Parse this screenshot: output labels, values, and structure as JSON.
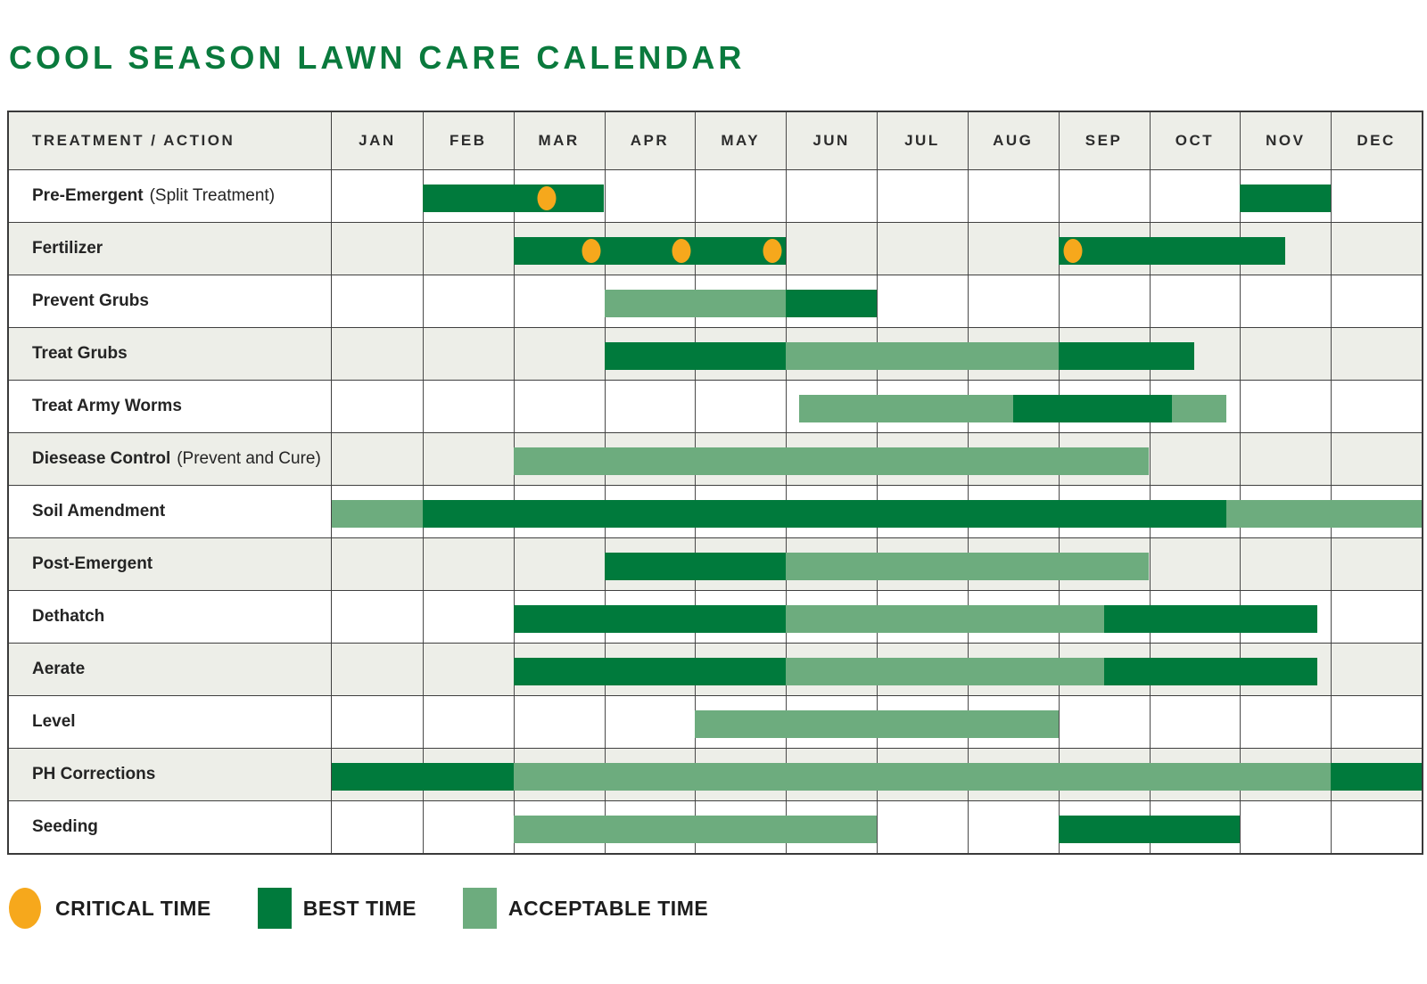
{
  "title": "COOL SEASON LAWN CARE CALENDAR",
  "colors": {
    "title_green": "#0a7a3d",
    "best_time": "#007a3c",
    "acceptable_time": "#6dac7e",
    "critical_time": "#f6a81c",
    "row_alt_bg": "#edeee8",
    "grid_line": "#4a4a4a",
    "row_line": "#3f3f3f",
    "table_border": "#3a3a3a"
  },
  "table": {
    "header": {
      "treatment_label": "TREATMENT / ACTION",
      "months": [
        "JAN",
        "FEB",
        "MAR",
        "APR",
        "MAY",
        "JUN",
        "JUL",
        "AUG",
        "SEP",
        "OCT",
        "NOV",
        "DEC"
      ]
    }
  },
  "chart_data": {
    "type": "table",
    "subtype": "gantt-calendar",
    "title": "COOL SEASON LAWN CARE CALENDAR",
    "x_unit": "month index: 0 = start of Jan, 12 = end of Dec",
    "x_domain_labels": [
      "JAN",
      "FEB",
      "MAR",
      "APR",
      "MAY",
      "JUN",
      "JUL",
      "AUG",
      "SEP",
      "OCT",
      "NOV",
      "DEC"
    ],
    "segment_types": {
      "best": "BEST TIME",
      "acceptable": "ACCEPTABLE TIME",
      "critical_dot": "CRITICAL TIME"
    },
    "rows": [
      {
        "label": "Pre-Emergent",
        "note": "(Split Treatment)",
        "segments": [
          {
            "type": "best",
            "start": 1,
            "end": 3
          },
          {
            "type": "best",
            "start": 10,
            "end": 11
          }
        ],
        "critical_dots": [
          2.37
        ]
      },
      {
        "label": "Fertilizer",
        "note": "",
        "segments": [
          {
            "type": "best",
            "start": 2,
            "end": 5
          },
          {
            "type": "best",
            "start": 8,
            "end": 10.5
          }
        ],
        "critical_dots": [
          2.86,
          3.85,
          4.85,
          8.16
        ]
      },
      {
        "label": "Prevent Grubs",
        "note": "",
        "segments": [
          {
            "type": "acceptable",
            "start": 3,
            "end": 5
          },
          {
            "type": "best",
            "start": 5,
            "end": 6
          }
        ],
        "critical_dots": []
      },
      {
        "label": "Treat Grubs",
        "note": "",
        "segments": [
          {
            "type": "best",
            "start": 3,
            "end": 5
          },
          {
            "type": "acceptable",
            "start": 5,
            "end": 8
          },
          {
            "type": "best",
            "start": 8,
            "end": 9.5
          }
        ],
        "critical_dots": []
      },
      {
        "label": "Treat Army Worms",
        "note": "",
        "segments": [
          {
            "type": "acceptable",
            "start": 5.15,
            "end": 7.5
          },
          {
            "type": "best",
            "start": 7.5,
            "end": 9.25
          },
          {
            "type": "acceptable",
            "start": 9.25,
            "end": 9.85
          }
        ],
        "critical_dots": []
      },
      {
        "label": "Diesease Control",
        "note": "(Prevent and Cure)",
        "segments": [
          {
            "type": "acceptable",
            "start": 2,
            "end": 9
          }
        ],
        "critical_dots": []
      },
      {
        "label": "Soil Amendment",
        "note": "",
        "segments": [
          {
            "type": "acceptable",
            "start": 0,
            "end": 1
          },
          {
            "type": "best",
            "start": 1,
            "end": 9.85
          },
          {
            "type": "acceptable",
            "start": 9.85,
            "end": 12
          }
        ],
        "critical_dots": []
      },
      {
        "label": "Post-Emergent",
        "note": "",
        "segments": [
          {
            "type": "best",
            "start": 3,
            "end": 5
          },
          {
            "type": "acceptable",
            "start": 5,
            "end": 9
          }
        ],
        "critical_dots": []
      },
      {
        "label": "Dethatch",
        "note": "",
        "segments": [
          {
            "type": "best",
            "start": 2,
            "end": 5
          },
          {
            "type": "acceptable",
            "start": 5,
            "end": 8.5
          },
          {
            "type": "best",
            "start": 8.5,
            "end": 10.85
          }
        ],
        "critical_dots": []
      },
      {
        "label": "Aerate",
        "note": "",
        "segments": [
          {
            "type": "best",
            "start": 2,
            "end": 5
          },
          {
            "type": "acceptable",
            "start": 5,
            "end": 8.5
          },
          {
            "type": "best",
            "start": 8.5,
            "end": 10.85
          }
        ],
        "critical_dots": []
      },
      {
        "label": "Level",
        "note": "",
        "segments": [
          {
            "type": "acceptable",
            "start": 4,
            "end": 8
          }
        ],
        "critical_dots": []
      },
      {
        "label": "PH Corrections",
        "note": "",
        "segments": [
          {
            "type": "best",
            "start": 0,
            "end": 2
          },
          {
            "type": "acceptable",
            "start": 2,
            "end": 11
          },
          {
            "type": "best",
            "start": 11,
            "end": 12
          }
        ],
        "critical_dots": []
      },
      {
        "label": "Seeding",
        "note": "",
        "segments": [
          {
            "type": "acceptable",
            "start": 2,
            "end": 6
          },
          {
            "type": "best",
            "start": 8,
            "end": 10
          }
        ],
        "critical_dots": []
      }
    ]
  },
  "legend": {
    "items": [
      {
        "key": "critical",
        "shape": "ellipse",
        "label": "CRITICAL TIME"
      },
      {
        "key": "best",
        "shape": "square",
        "label": "BEST TIME"
      },
      {
        "key": "acceptable",
        "shape": "square",
        "label": "ACCEPTABLE TIME"
      }
    ]
  }
}
